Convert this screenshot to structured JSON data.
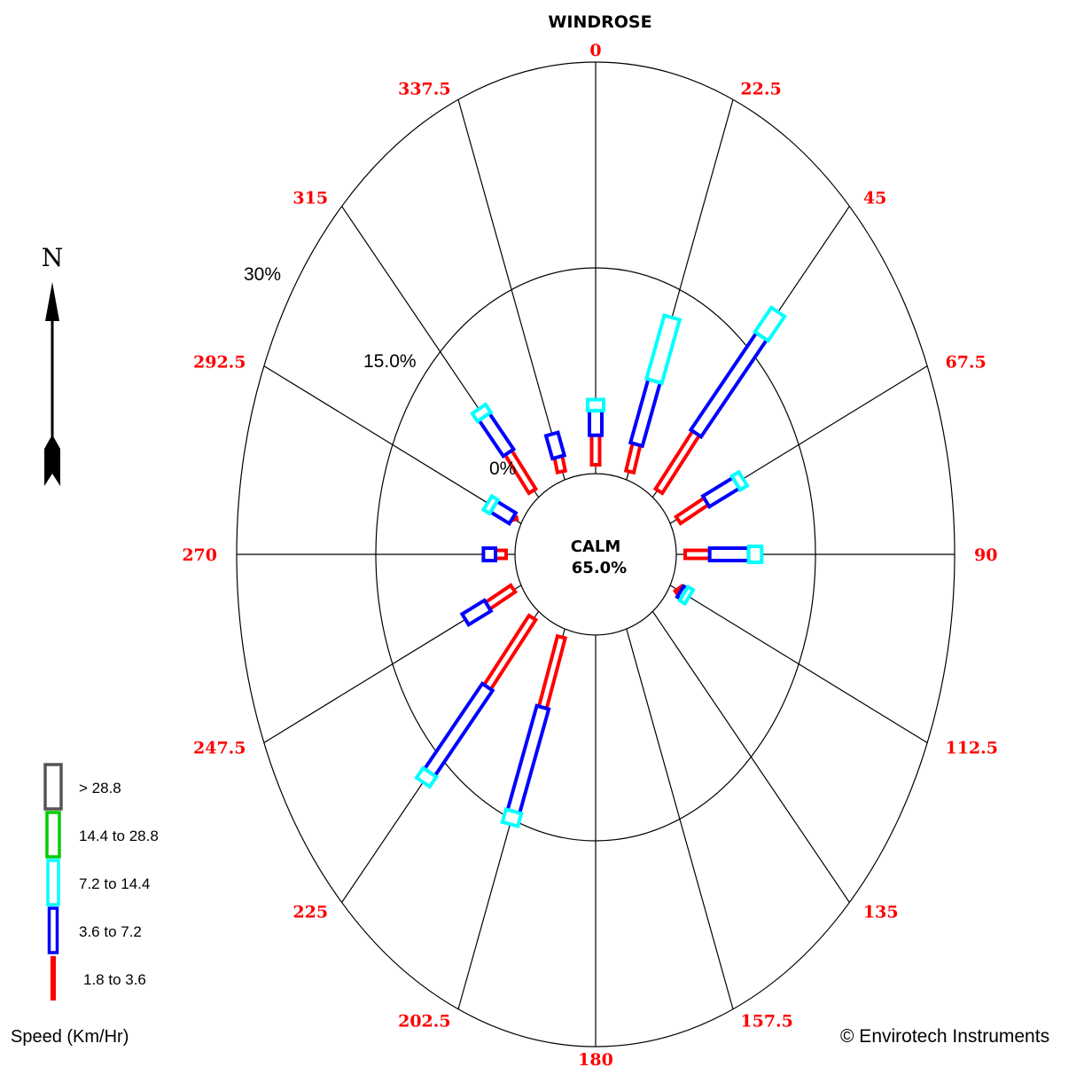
{
  "chart_data": {
    "type": "windrose",
    "title": "WINDROSE",
    "calm": {
      "label": "CALM",
      "value": "65.0%"
    },
    "ring_labels": [
      "0%",
      "15.0%",
      "30%"
    ],
    "ring_values": [
      0,
      15,
      30
    ],
    "directions": [
      "0",
      "22.5",
      "45",
      "67.5",
      "90",
      "112.5",
      "135",
      "157.5",
      "180",
      "202.5",
      "225",
      "247.5",
      "270",
      "292.5",
      "315",
      "337.5"
    ],
    "speed_bins": [
      {
        "label": "1.8 to 3.6",
        "color": "#ff0000"
      },
      {
        "label": "3.6 to 7.2",
        "color": "#0000ff"
      },
      {
        "label": "7.2 to 14.4",
        "color": "#00ffff"
      },
      {
        "label": "14.4 to 28.8",
        "color": "#00cc00"
      },
      {
        "label": "> 28.8",
        "color": "#555555"
      }
    ],
    "series": [
      {
        "direction": 0,
        "values": [
          2.8,
          1.8,
          0.8,
          0,
          0
        ]
      },
      {
        "direction": 22.5,
        "values": [
          2.8,
          5.0,
          5.0,
          0,
          0
        ]
      },
      {
        "direction": 45,
        "values": [
          6.6,
          10.0,
          2.5,
          0,
          0
        ]
      },
      {
        "direction": 67.5,
        "values": [
          4.2,
          3.5,
          0.8,
          0,
          0
        ]
      },
      {
        "direction": 90,
        "values": [
          3.6,
          4.2,
          1.4,
          0,
          0
        ]
      },
      {
        "direction": 112.5,
        "values": [
          1.2,
          0.4,
          0.6,
          0,
          0
        ]
      },
      {
        "direction": 135,
        "values": [
          0,
          0,
          0,
          0,
          0
        ]
      },
      {
        "direction": 157.5,
        "values": [
          0,
          0,
          0,
          0,
          0
        ]
      },
      {
        "direction": 180,
        "values": [
          0,
          0,
          0,
          0,
          0
        ]
      },
      {
        "direction": 202.5,
        "values": [
          6.2,
          8.2,
          1.0,
          0,
          0
        ]
      },
      {
        "direction": 225,
        "values": [
          7.8,
          8.8,
          1.0,
          0,
          0
        ]
      },
      {
        "direction": 247.5,
        "values": [
          3.9,
          2.6,
          0,
          0,
          0
        ]
      },
      {
        "direction": 270,
        "values": [
          2.1,
          1.3,
          0,
          0,
          0
        ]
      },
      {
        "direction": 292.5,
        "values": [
          1.0,
          2.2,
          0.7,
          0,
          0
        ]
      },
      {
        "direction": 315,
        "values": [
          4.6,
          3.7,
          0.8,
          0,
          0
        ]
      },
      {
        "direction": 337.5,
        "values": [
          1.8,
          1.8,
          0,
          0,
          0
        ]
      }
    ],
    "speed_unit_label": "Speed (Km/Hr)",
    "north_label": "N",
    "copyright": "© Envirotech Instruments"
  }
}
